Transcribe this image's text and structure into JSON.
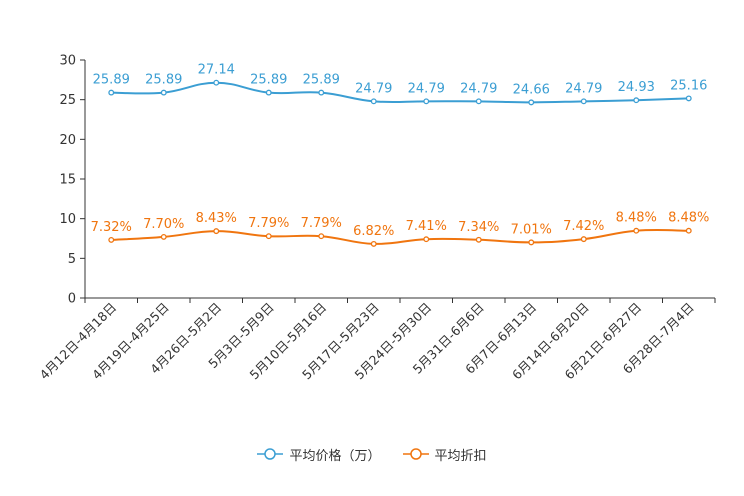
{
  "chart_data": {
    "type": "line",
    "title": "",
    "xlabel": "",
    "ylabel": "",
    "ylim": [
      0,
      30
    ],
    "yticks": [
      "0",
      "5",
      "10",
      "15",
      "20",
      "25",
      "30"
    ],
    "categories": [
      "4月12日-4月18日",
      "4月19日-4月25日",
      "4月26日-5月2日",
      "5月3日-5月9日",
      "5月10日-5月16日",
      "5月17日-5月23日",
      "5月24日-5月30日",
      "5月31日-6月6日",
      "6月7日-6月13日",
      "6月14日-6月20日",
      "6月21日-6月27日",
      "6月28日-7月4日"
    ],
    "series": [
      {
        "name": "平均价格（万）",
        "color": "#3b9ed3",
        "values": [
          25.89,
          25.89,
          27.14,
          25.89,
          25.89,
          24.79,
          24.79,
          24.79,
          24.66,
          24.79,
          24.93,
          25.16
        ],
        "labels": [
          "25.89",
          "25.89",
          "27.14",
          "25.89",
          "25.89",
          "24.79",
          "24.79",
          "24.79",
          "24.66",
          "24.79",
          "24.93",
          "25.16"
        ]
      },
      {
        "name": "平均折扣",
        "color": "#f0750f",
        "values": [
          7.32,
          7.7,
          8.43,
          7.79,
          7.79,
          6.82,
          7.41,
          7.34,
          7.01,
          7.42,
          8.48,
          8.48
        ],
        "labels": [
          "7.32%",
          "7.70%",
          "8.43%",
          "7.79%",
          "7.79%",
          "6.82%",
          "7.41%",
          "7.34%",
          "7.01%",
          "7.42%",
          "8.48%",
          "8.48%"
        ]
      }
    ]
  }
}
